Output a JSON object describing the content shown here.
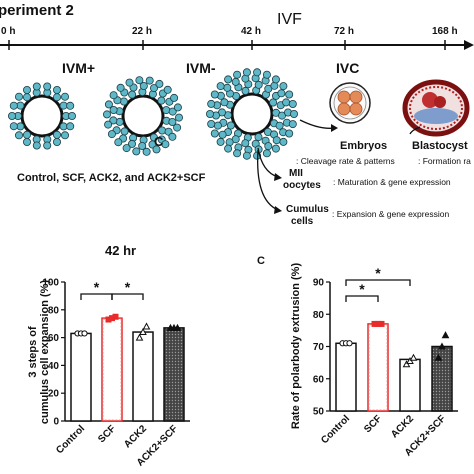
{
  "header": {
    "title": "periment 2",
    "ivf_label": "IVF"
  },
  "timeline": {
    "ticks": [
      "0 h",
      "22 h",
      "42 h",
      "72 h",
      "168 h"
    ],
    "stages": [
      "IVM+",
      "IVM-",
      "IVC"
    ],
    "treatments": "Control, SCF, ACK2, and ACK2+SCF",
    "cell_mark": "C"
  },
  "outcomes": {
    "embryos": {
      "label": "Embryos",
      "detail": ": Cleavage rate & patterns"
    },
    "blastocyst": {
      "label": "Blastocyst",
      "detail": ": Formation ra"
    },
    "mii": {
      "label_line1": "MII",
      "label_line2": "oocytes",
      "detail": ": Maturation & gene expression"
    },
    "cumulus": {
      "label_line1": "Cumulus",
      "label_line2": "cells",
      "detail": ": Expansion & gene expression"
    }
  },
  "colors": {
    "control": "#ffffff",
    "scf": "#e82b2b",
    "ack2": "#ffffff",
    "ack2_scf": "#555555",
    "cumulus": "#5fb8c8",
    "blastocyst": "#b02020"
  },
  "chart_data": [
    {
      "type": "bar",
      "title": "42 hr",
      "ylabel_line1": "3 steps of",
      "ylabel_line2": "cumulus cell expansion (%)",
      "categories": [
        "Control",
        "SCF",
        "ACK2",
        "ACK2+SCF"
      ],
      "values": [
        63,
        74,
        64,
        67
      ],
      "points": [
        [
          63,
          63,
          63
        ],
        [
          73,
          74,
          75
        ],
        [
          60,
          64,
          68
        ],
        [
          67,
          67,
          67
        ]
      ],
      "yticks": [
        "0",
        "20",
        "40",
        "60",
        "80",
        "100"
      ],
      "ylim": [
        0,
        100
      ],
      "significance": [
        {
          "from": "Control",
          "to": "SCF",
          "label": "*"
        },
        {
          "from": "SCF",
          "to": "ACK2",
          "label": "*"
        }
      ]
    },
    {
      "type": "bar",
      "panel_label": "C",
      "title": "",
      "ylabel": "Rate of polarbody extrusion (%)",
      "categories": [
        "Control",
        "SCF",
        "ACK2",
        "ACK2+SCF"
      ],
      "values": [
        71,
        77,
        66,
        70
      ],
      "points": [
        [
          71,
          71,
          71
        ],
        [
          77,
          77,
          77
        ],
        [
          64.5,
          65.5,
          66.5
        ],
        [
          66.5,
          70,
          73.5
        ]
      ],
      "yticks": [
        "50",
        "60",
        "70",
        "80",
        "90"
      ],
      "ylim": [
        50,
        90
      ],
      "significance": [
        {
          "from": "Control",
          "to": "SCF",
          "label": "*"
        },
        {
          "from": "Control",
          "to": "ACK2",
          "label": "*"
        }
      ]
    }
  ]
}
